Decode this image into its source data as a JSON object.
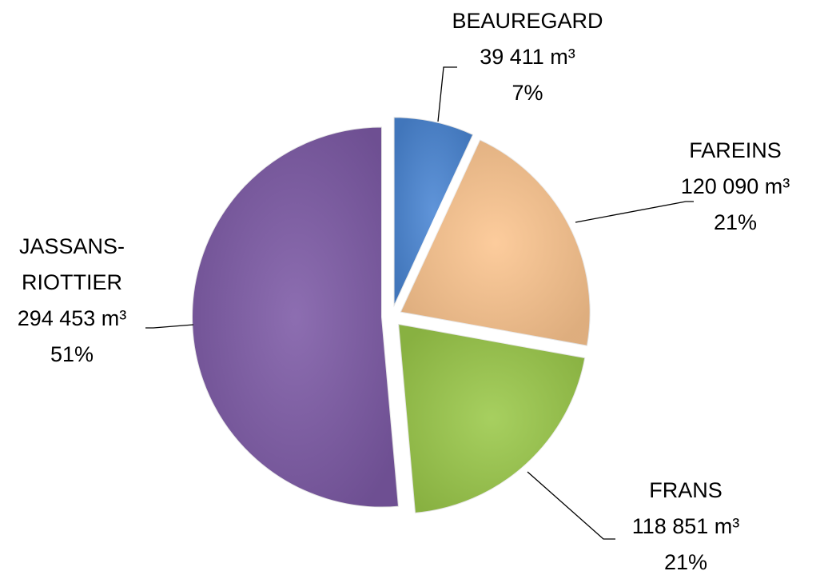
{
  "chart_data": {
    "type": "pie",
    "categories": [
      "BEAUREGARD",
      "FAREINS",
      "FRANS",
      "JASSANS-RIOTTIER"
    ],
    "values": [
      39411,
      120090,
      118851,
      294453
    ],
    "value_labels": [
      "39 411 m³",
      "120 090 m³",
      "118 851 m³",
      "294 453 m³"
    ],
    "percents": [
      7,
      21,
      21,
      51
    ],
    "percent_labels": [
      "7%",
      "21%",
      "21%",
      "51%"
    ],
    "colors": [
      "#4a86d4",
      "#fcc58f",
      "#9bc94a",
      "#7d5aa6"
    ]
  }
}
